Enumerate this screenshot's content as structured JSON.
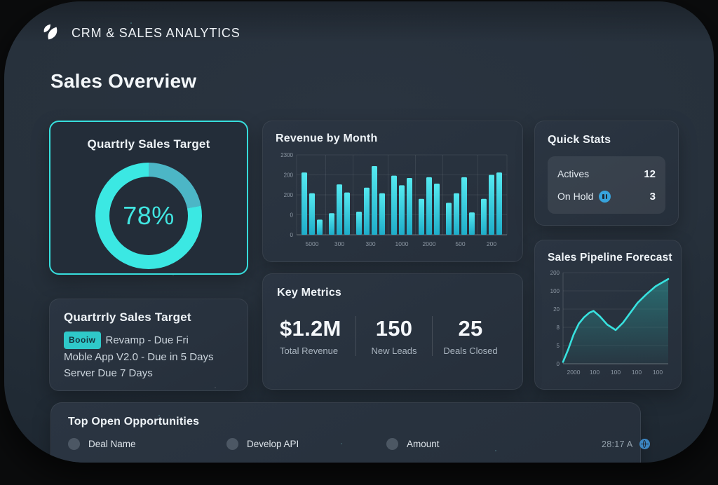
{
  "app": {
    "title": "CRM & SALES ANALYTICS",
    "page_title": "Sales Overview"
  },
  "colors": {
    "accent_cyan": "#3be8e3",
    "muted_teal": "#4cb6c6",
    "frame_bg": "#27313c",
    "card_bg": "#28323e",
    "badge_teal": "#2fc9c9",
    "blue_icon": "#37a3dc"
  },
  "donut_card": {
    "title": "Quartrly Sales Target",
    "percent_label": "78%"
  },
  "revenue_card": {
    "title": "Revenue by Month"
  },
  "quick_stats": {
    "title": "Quick Stats",
    "rows": [
      {
        "label": "Actives",
        "value": "12"
      },
      {
        "label": "On Hold",
        "value": "3",
        "icon": "pause-badge-icon"
      }
    ]
  },
  "pipeline_card": {
    "title": "Sales Pipeline Forecast"
  },
  "key_metrics": {
    "title": "Key Metrics",
    "items": [
      {
        "value": "$1.2M",
        "label": "Total Revenue"
      },
      {
        "value": "150",
        "label": "New Leads"
      },
      {
        "value": "25",
        "label": "Deals Closed"
      }
    ]
  },
  "tasks_card": {
    "title": "Quartrrly Sales Target",
    "badge": "Booiw",
    "line1": "Revamp - Due Fri",
    "line2": "Moble App V2.0 - Due in 5 Days",
    "line3": "Server Due 7 Days"
  },
  "opportunities": {
    "title": "Top Open Opportunities",
    "columns": [
      "Deal Name",
      "Develop API",
      "Amount"
    ]
  },
  "footer": {
    "timestamp": "28:17 A"
  },
  "chart_data": [
    {
      "type": "pie",
      "variant": "donut-progress",
      "title": "Quartrly Sales Target",
      "value": 78,
      "max": 100,
      "label": "78%",
      "ring_color": "#3be8e3",
      "remainder_color": "#4cb6c6"
    },
    {
      "type": "bar",
      "title": "Revenue by Month",
      "y_tick_labels": [
        "2300",
        "200",
        "200",
        "0",
        "0"
      ],
      "x_tick_labels": [
        "5000",
        "300",
        "300",
        "1000",
        "2000",
        "500",
        "200"
      ],
      "groups": [
        [
          0.78,
          0.52,
          0.19
        ],
        [
          0.27,
          0.63,
          0.53
        ],
        [
          0.29,
          0.59,
          0.86,
          0.52
        ],
        [
          0.74,
          0.62,
          0.71
        ],
        [
          0.45,
          0.72,
          0.64
        ],
        [
          0.4,
          0.52,
          0.72,
          0.28
        ],
        [
          0.45,
          0.75,
          0.78
        ]
      ],
      "bar_color_top": "#55e9f0",
      "bar_color_bottom": "#1fadc9",
      "grid": true
    },
    {
      "type": "area",
      "title": "Sales Pipeline Forecast",
      "y_tick_labels": [
        "200",
        "100",
        "20",
        "8",
        "5",
        "0"
      ],
      "x_tick_labels": [
        "2000",
        "100",
        "100",
        "100",
        "100"
      ],
      "points": [
        [
          0.0,
          0.02
        ],
        [
          0.05,
          0.16
        ],
        [
          0.1,
          0.32
        ],
        [
          0.15,
          0.44
        ],
        [
          0.2,
          0.51
        ],
        [
          0.25,
          0.56
        ],
        [
          0.29,
          0.58
        ],
        [
          0.35,
          0.52
        ],
        [
          0.42,
          0.43
        ],
        [
          0.5,
          0.37
        ],
        [
          0.57,
          0.45
        ],
        [
          0.64,
          0.56
        ],
        [
          0.71,
          0.67
        ],
        [
          0.79,
          0.76
        ],
        [
          0.88,
          0.85
        ],
        [
          1.0,
          0.93
        ]
      ],
      "line_color": "#38e2df",
      "fill_color": "#2b9a99",
      "grid": true
    }
  ]
}
